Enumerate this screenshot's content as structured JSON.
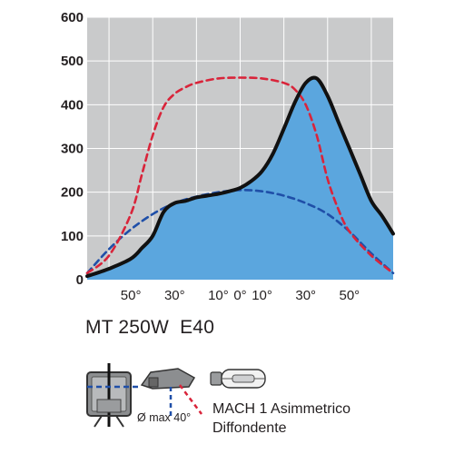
{
  "chart_data": {
    "type": "area",
    "title": "",
    "xlabel": "",
    "ylabel": "",
    "ylim": [
      0,
      600
    ],
    "xlim": [
      -70,
      70
    ],
    "y_ticks": [
      "0",
      "100",
      "200",
      "300",
      "400",
      "500",
      "600"
    ],
    "x_ticks": [
      {
        "value": -50,
        "label": "50°"
      },
      {
        "value": -30,
        "label": "30°"
      },
      {
        "value": -10,
        "label": "10°"
      },
      {
        "value": 0,
        "label": "0°"
      },
      {
        "value": 10,
        "label": "10°"
      },
      {
        "value": 30,
        "label": "30°"
      },
      {
        "value": 50,
        "label": "50°"
      }
    ],
    "grid": true,
    "colors": {
      "plot_background": "#c9cacb",
      "grid": "#ffffff",
      "fill": "#5ba6de",
      "solid_line": "#111111",
      "red_dashed": "#d9243a",
      "blue_dashed": "#1f4fa8"
    },
    "series": [
      {
        "style": "solid-filled",
        "x": [
          -70,
          -60,
          -50,
          -45,
          -40,
          -35,
          -30,
          -25,
          -20,
          -15,
          -10,
          -5,
          0,
          5,
          10,
          15,
          20,
          25,
          30,
          35,
          40,
          45,
          50,
          55,
          60,
          65,
          70
        ],
        "y": [
          8,
          25,
          48,
          72,
          100,
          155,
          175,
          180,
          188,
          192,
          196,
          202,
          210,
          225,
          248,
          288,
          345,
          405,
          450,
          460,
          420,
          360,
          300,
          240,
          180,
          145,
          105
        ]
      },
      {
        "style": "red-dashed",
        "x": [
          -70,
          -60,
          -50,
          -45,
          -40,
          -35,
          -30,
          -25,
          -20,
          -10,
          0,
          10,
          20,
          25,
          30,
          35,
          40,
          45,
          50,
          60,
          70
        ],
        "y": [
          15,
          55,
          150,
          240,
          330,
          395,
          425,
          440,
          450,
          460,
          462,
          460,
          450,
          435,
          400,
          330,
          230,
          160,
          110,
          55,
          15
        ]
      },
      {
        "style": "blue-dashed",
        "x": [
          -70,
          -60,
          -50,
          -40,
          -30,
          -20,
          -10,
          0,
          10,
          20,
          30,
          40,
          50,
          60,
          70
        ],
        "y": [
          15,
          70,
          115,
          150,
          175,
          190,
          200,
          205,
          202,
          192,
          175,
          150,
          110,
          60,
          15
        ]
      }
    ]
  },
  "product": {
    "title": "MT 250W  E40"
  },
  "legend": {
    "name": "MACH 1 Asimmetrico",
    "subtitle": "Diffondente",
    "tilt": "Ø max 40°"
  },
  "icons": {
    "luminaire": "floodlight-icon",
    "lamp": "metal-halide-lamp-icon"
  }
}
